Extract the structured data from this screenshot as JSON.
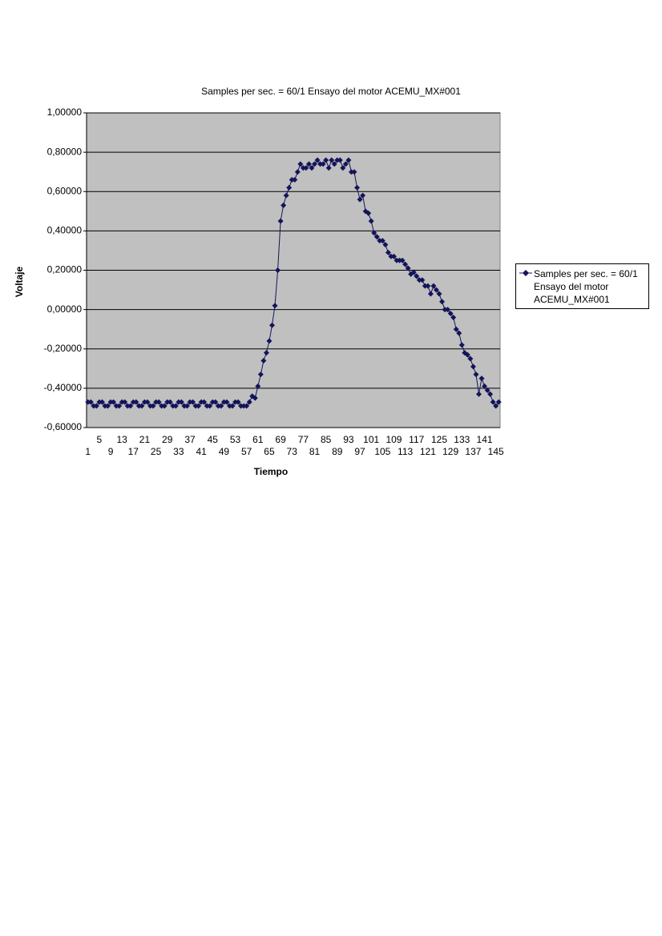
{
  "chart_data": {
    "type": "line",
    "title": "Samples per sec. = 60/1 Ensayo del motor ACEMU_MX#001",
    "x_label": "Tiempo",
    "y_label": "Voltaje",
    "categories": [
      1,
      2,
      3,
      4,
      5,
      6,
      7,
      8,
      9,
      10,
      11,
      12,
      13,
      14,
      15,
      16,
      17,
      18,
      19,
      20,
      21,
      22,
      23,
      24,
      25,
      26,
      27,
      28,
      29,
      30,
      31,
      32,
      33,
      34,
      35,
      36,
      37,
      38,
      39,
      40,
      41,
      42,
      43,
      44,
      45,
      46,
      47,
      48,
      49,
      50,
      51,
      52,
      53,
      54,
      55,
      56,
      57,
      58,
      59,
      60,
      61,
      62,
      63,
      64,
      65,
      66,
      67,
      68,
      69,
      70,
      71,
      72,
      73,
      74,
      75,
      76,
      77,
      78,
      79,
      80,
      81,
      82,
      83,
      84,
      85,
      86,
      87,
      88,
      89,
      90,
      91,
      92,
      93,
      94,
      95,
      96,
      97,
      98,
      99,
      100,
      101,
      102,
      103,
      104,
      105,
      106,
      107,
      108,
      109,
      110,
      111,
      112,
      113,
      114,
      115,
      116,
      117,
      118,
      119,
      120,
      121,
      122,
      123,
      124,
      125,
      126,
      127,
      128,
      129,
      130,
      131,
      132,
      133,
      134,
      135,
      136,
      137,
      138,
      139,
      140,
      141,
      142,
      143,
      144,
      145,
      146
    ],
    "series": [
      {
        "name": "Samples per sec. = 60/1 Ensayo del motor ACEMU_MX#001",
        "color": "#14145a",
        "values": [
          -0.47,
          -0.47,
          -0.49,
          -0.49,
          -0.47,
          -0.47,
          -0.49,
          -0.49,
          -0.47,
          -0.47,
          -0.49,
          -0.49,
          -0.47,
          -0.47,
          -0.49,
          -0.49,
          -0.47,
          -0.47,
          -0.49,
          -0.49,
          -0.47,
          -0.47,
          -0.49,
          -0.49,
          -0.47,
          -0.47,
          -0.49,
          -0.49,
          -0.47,
          -0.47,
          -0.49,
          -0.49,
          -0.47,
          -0.47,
          -0.49,
          -0.49,
          -0.47,
          -0.47,
          -0.49,
          -0.49,
          -0.47,
          -0.47,
          -0.49,
          -0.49,
          -0.47,
          -0.47,
          -0.49,
          -0.49,
          -0.47,
          -0.47,
          -0.49,
          -0.49,
          -0.47,
          -0.47,
          -0.49,
          -0.49,
          -0.49,
          -0.47,
          -0.44,
          -0.45,
          -0.39,
          -0.33,
          -0.26,
          -0.22,
          -0.16,
          -0.08,
          0.02,
          0.2,
          0.45,
          0.53,
          0.58,
          0.62,
          0.66,
          0.66,
          0.7,
          0.74,
          0.72,
          0.72,
          0.74,
          0.72,
          0.74,
          0.76,
          0.74,
          0.74,
          0.76,
          0.72,
          0.76,
          0.74,
          0.76,
          0.76,
          0.72,
          0.74,
          0.76,
          0.7,
          0.7,
          0.62,
          0.56,
          0.58,
          0.5,
          0.49,
          0.45,
          0.39,
          0.37,
          0.35,
          0.35,
          0.33,
          0.29,
          0.27,
          0.27,
          0.25,
          0.25,
          0.25,
          0.23,
          0.21,
          0.18,
          0.19,
          0.17,
          0.15,
          0.15,
          0.12,
          0.12,
          0.08,
          0.12,
          0.1,
          0.08,
          0.04,
          0,
          0,
          -0.02,
          -0.04,
          -0.1,
          -0.12,
          -0.18,
          -0.22,
          -0.23,
          -0.25,
          -0.29,
          -0.33,
          -0.43,
          -0.35,
          -0.39,
          -0.41,
          -0.43,
          -0.47,
          -0.49,
          -0.47
        ]
      }
    ],
    "ylim": [
      -0.6,
      1.0
    ],
    "yticks": [
      {
        "value": -0.6,
        "label": "-0,60000"
      },
      {
        "value": -0.4,
        "label": "-0,40000"
      },
      {
        "value": -0.2,
        "label": "-0,20000"
      },
      {
        "value": 0,
        "label": "0,00000"
      },
      {
        "value": 0.2,
        "label": "0,20000"
      },
      {
        "value": 0.4,
        "label": "0,40000"
      },
      {
        "value": 0.6,
        "label": "0,60000"
      },
      {
        "value": 0.8,
        "label": "0,80000"
      },
      {
        "value": 1.0,
        "label": "1,00000"
      }
    ],
    "grid": true,
    "plot_background": "#c0c0c0",
    "legend": "right"
  }
}
